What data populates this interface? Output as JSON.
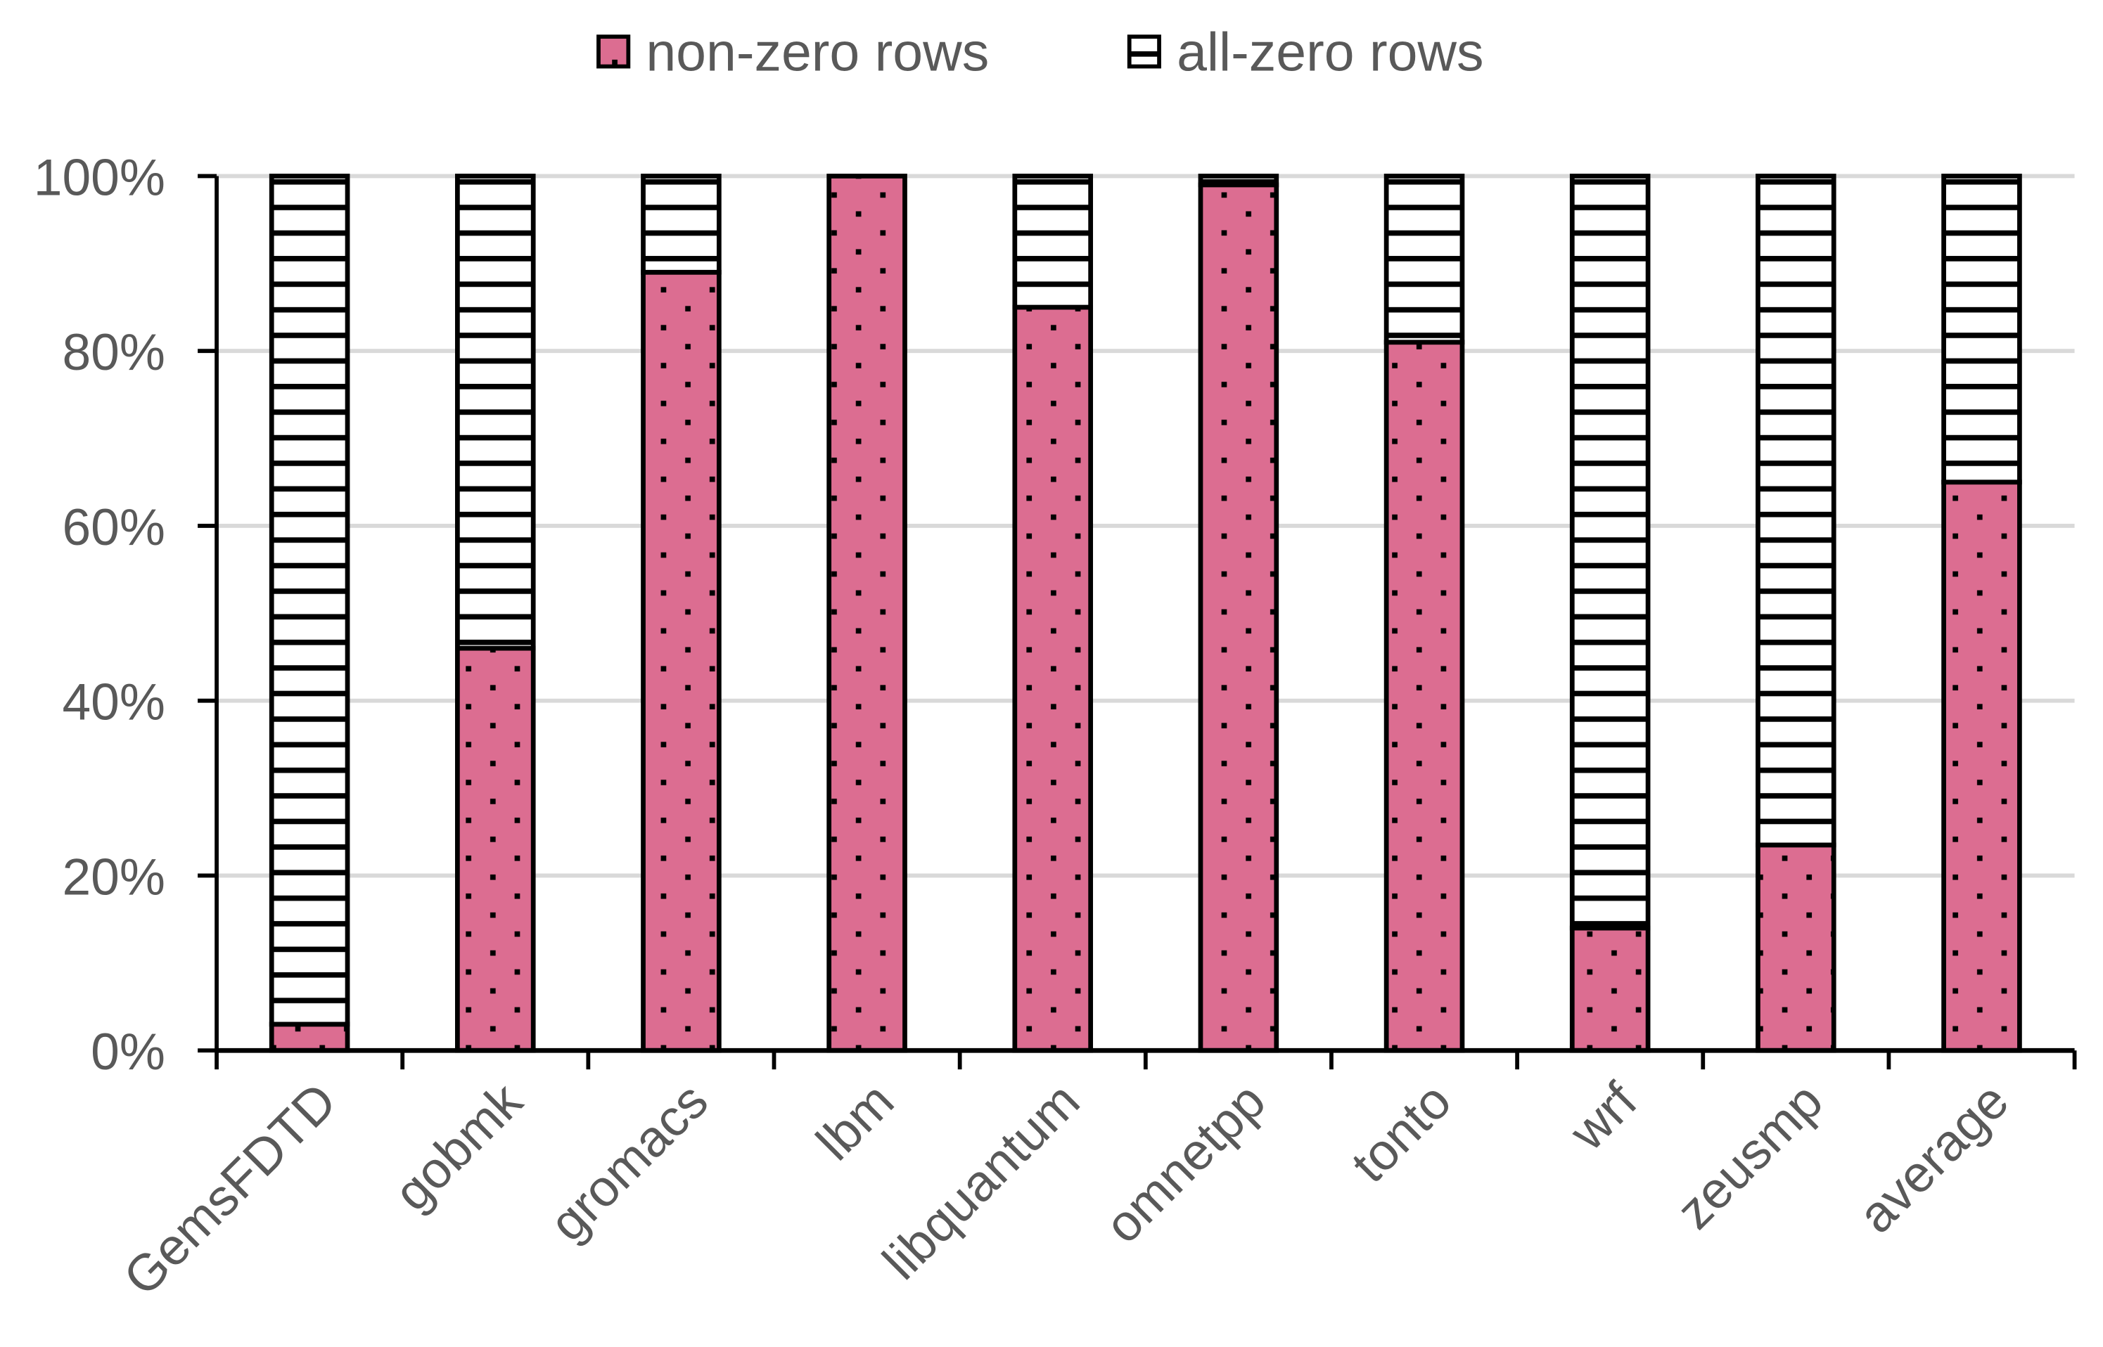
{
  "chart_data": {
    "type": "bar",
    "stacked": true,
    "title": "",
    "xlabel": "",
    "ylabel": "",
    "ylim": [
      0,
      100
    ],
    "yticks": [
      "0%",
      "20%",
      "40%",
      "60%",
      "80%",
      "100%"
    ],
    "grid": true,
    "legend_position": "top",
    "categories": [
      "GemsFDTD",
      "gobmk",
      "gromacs",
      "lbm",
      "libquantum",
      "omnetpp",
      "tonto",
      "wrf",
      "zeusmp",
      "average"
    ],
    "series": [
      {
        "name": "non-zero rows",
        "color": "#DC6D91",
        "pattern": "dots",
        "values": [
          3,
          46,
          89,
          100,
          85,
          99,
          81,
          14,
          23.5,
          65
        ]
      },
      {
        "name": "all-zero rows",
        "color": "#FFFFFF",
        "pattern": "horizontal-lines",
        "values": [
          97,
          54,
          11,
          0,
          15,
          1,
          19,
          86,
          76.5,
          35
        ]
      }
    ]
  }
}
